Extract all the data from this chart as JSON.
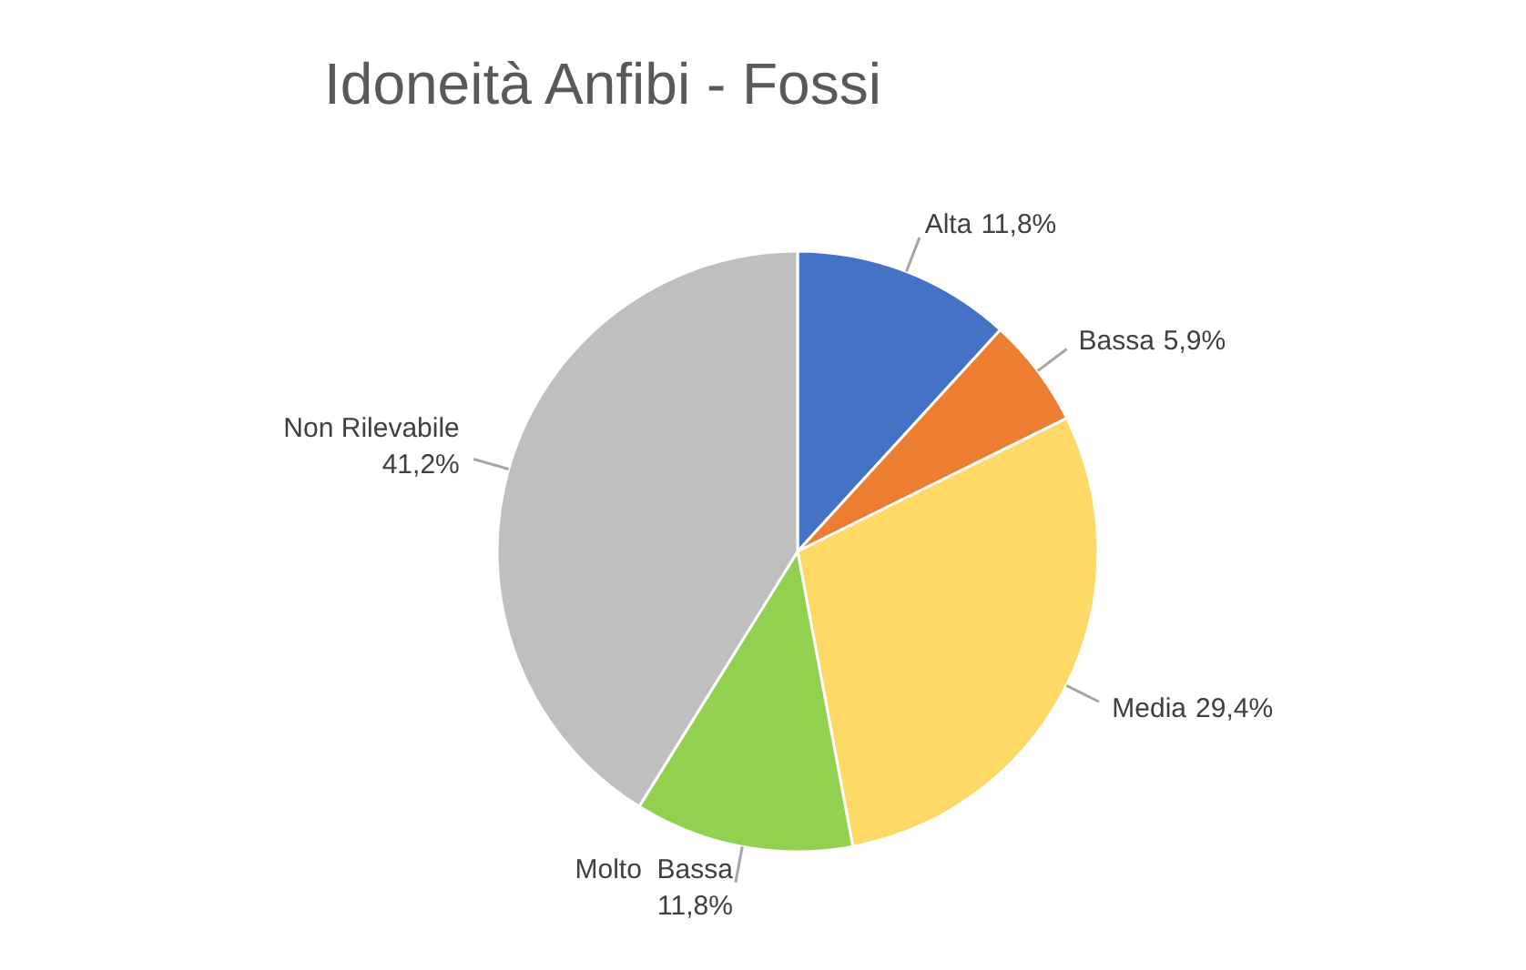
{
  "chart_data": {
    "type": "pie",
    "title": "Idoneità Anfibi - Fossi",
    "categories": [
      "Alta",
      "Bassa",
      "Media",
      "Molto  Bassa",
      "Non Rilevabile"
    ],
    "values": [
      11.8,
      5.9,
      29.4,
      11.8,
      41.2
    ],
    "value_labels": [
      "11,8%",
      "5,9%",
      "29,4%",
      "11,8%",
      "41,2%"
    ],
    "colors": [
      "#4472c4",
      "#ed7d31",
      "#ffd966",
      "#92d050",
      "#bfbfbf"
    ],
    "legend": false
  }
}
